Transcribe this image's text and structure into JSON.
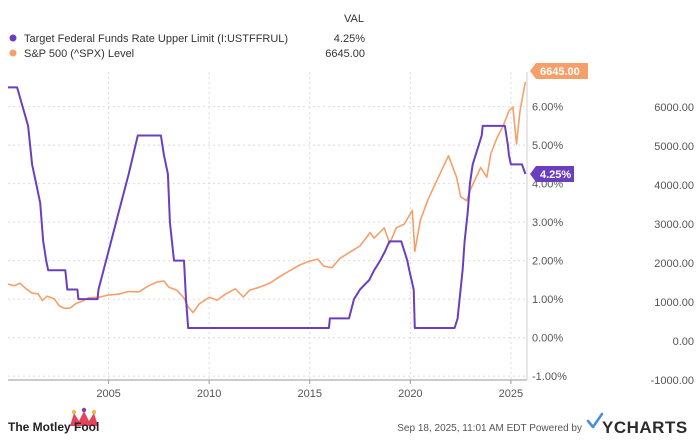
{
  "chart_data": {
    "type": "line",
    "legend_header": "VAL",
    "legend_position": "top-left",
    "grid": true,
    "series": [
      {
        "name": "Target Federal Funds Rate Upper Limit (I:USTFFRUL)",
        "legend_value": "4.25%",
        "end_label": "4.25%",
        "color": "#6a3fbf",
        "axis": "left",
        "points": [
          [
            2000.0,
            6.5
          ],
          [
            2000.45,
            6.5
          ],
          [
            2001.0,
            5.5
          ],
          [
            2001.2,
            4.5
          ],
          [
            2001.4,
            4.0
          ],
          [
            2001.6,
            3.5
          ],
          [
            2001.75,
            2.5
          ],
          [
            2001.9,
            2.0
          ],
          [
            2002.0,
            1.75
          ],
          [
            2002.85,
            1.75
          ],
          [
            2002.95,
            1.25
          ],
          [
            2003.45,
            1.25
          ],
          [
            2003.5,
            1.0
          ],
          [
            2004.45,
            1.0
          ],
          [
            2004.5,
            1.25
          ],
          [
            2005.0,
            2.25
          ],
          [
            2005.5,
            3.25
          ],
          [
            2006.0,
            4.25
          ],
          [
            2006.45,
            5.25
          ],
          [
            2007.6,
            5.25
          ],
          [
            2007.75,
            4.75
          ],
          [
            2007.95,
            4.25
          ],
          [
            2008.05,
            3.0
          ],
          [
            2008.25,
            2.0
          ],
          [
            2008.75,
            2.0
          ],
          [
            2008.85,
            1.0
          ],
          [
            2008.96,
            0.25
          ],
          [
            2015.95,
            0.25
          ],
          [
            2016.0,
            0.5
          ],
          [
            2016.95,
            0.5
          ],
          [
            2017.2,
            1.0
          ],
          [
            2017.5,
            1.25
          ],
          [
            2017.96,
            1.5
          ],
          [
            2018.2,
            1.75
          ],
          [
            2018.5,
            2.0
          ],
          [
            2018.75,
            2.25
          ],
          [
            2018.96,
            2.5
          ],
          [
            2019.55,
            2.5
          ],
          [
            2019.7,
            2.25
          ],
          [
            2019.85,
            2.0
          ],
          [
            2019.95,
            1.75
          ],
          [
            2020.17,
            1.25
          ],
          [
            2020.22,
            0.25
          ],
          [
            2022.2,
            0.25
          ],
          [
            2022.35,
            0.5
          ],
          [
            2022.45,
            1.0
          ],
          [
            2022.6,
            1.75
          ],
          [
            2022.7,
            2.5
          ],
          [
            2022.85,
            3.25
          ],
          [
            2022.96,
            4.0
          ],
          [
            2023.1,
            4.5
          ],
          [
            2023.25,
            4.75
          ],
          [
            2023.4,
            5.0
          ],
          [
            2023.55,
            5.25
          ],
          [
            2023.6,
            5.5
          ],
          [
            2024.7,
            5.5
          ],
          [
            2024.85,
            5.0
          ],
          [
            2024.9,
            4.75
          ],
          [
            2025.0,
            4.5
          ],
          [
            2025.55,
            4.5
          ],
          [
            2025.72,
            4.25
          ]
        ]
      },
      {
        "name": "S&P 500 (^SPX) Level",
        "legend_value": "6645.00",
        "end_label": "6645.00",
        "color": "#f5a06a",
        "axis": "right",
        "points": [
          [
            2000.0,
            1460
          ],
          [
            2000.3,
            1420
          ],
          [
            2000.6,
            1480
          ],
          [
            2000.9,
            1340
          ],
          [
            2001.2,
            1230
          ],
          [
            2001.5,
            1210
          ],
          [
            2001.7,
            1040
          ],
          [
            2001.95,
            1150
          ],
          [
            2002.3,
            1080
          ],
          [
            2002.55,
            900
          ],
          [
            2002.8,
            840
          ],
          [
            2003.1,
            850
          ],
          [
            2003.4,
            970
          ],
          [
            2003.7,
            1020
          ],
          [
            2004.0,
            1110
          ],
          [
            2004.5,
            1120
          ],
          [
            2005.0,
            1180
          ],
          [
            2005.5,
            1200
          ],
          [
            2006.0,
            1270
          ],
          [
            2006.5,
            1260
          ],
          [
            2007.0,
            1420
          ],
          [
            2007.4,
            1510
          ],
          [
            2007.75,
            1540
          ],
          [
            2008.0,
            1380
          ],
          [
            2008.4,
            1300
          ],
          [
            2008.75,
            1100
          ],
          [
            2008.95,
            880
          ],
          [
            2009.2,
            730
          ],
          [
            2009.5,
            950
          ],
          [
            2010.0,
            1120
          ],
          [
            2010.4,
            1050
          ],
          [
            2010.8,
            1200
          ],
          [
            2011.3,
            1340
          ],
          [
            2011.7,
            1130
          ],
          [
            2012.0,
            1300
          ],
          [
            2012.5,
            1380
          ],
          [
            2013.0,
            1480
          ],
          [
            2013.5,
            1650
          ],
          [
            2014.0,
            1800
          ],
          [
            2014.5,
            1950
          ],
          [
            2015.0,
            2050
          ],
          [
            2015.4,
            2100
          ],
          [
            2015.7,
            1920
          ],
          [
            2016.1,
            1880
          ],
          [
            2016.5,
            2120
          ],
          [
            2017.0,
            2280
          ],
          [
            2017.5,
            2440
          ],
          [
            2018.0,
            2780
          ],
          [
            2018.2,
            2640
          ],
          [
            2018.7,
            2900
          ],
          [
            2018.98,
            2500
          ],
          [
            2019.3,
            2900
          ],
          [
            2019.7,
            3000
          ],
          [
            2020.1,
            3350
          ],
          [
            2020.22,
            2300
          ],
          [
            2020.5,
            3100
          ],
          [
            2020.9,
            3650
          ],
          [
            2021.3,
            4100
          ],
          [
            2021.9,
            4750
          ],
          [
            2022.3,
            4200
          ],
          [
            2022.5,
            3700
          ],
          [
            2022.8,
            3600
          ],
          [
            2023.0,
            3900
          ],
          [
            2023.5,
            4450
          ],
          [
            2023.8,
            4200
          ],
          [
            2024.0,
            4800
          ],
          [
            2024.3,
            5200
          ],
          [
            2024.6,
            5500
          ],
          [
            2024.9,
            5900
          ],
          [
            2025.1,
            6000
          ],
          [
            2025.28,
            5050
          ],
          [
            2025.45,
            5900
          ],
          [
            2025.72,
            6645
          ]
        ]
      }
    ],
    "x_ticks": [
      "2005",
      "2010",
      "2015",
      "2020",
      "2025"
    ],
    "x_tick_values": [
      2005,
      2010,
      2015,
      2020,
      2025
    ],
    "xlim": [
      2000,
      2025.8
    ],
    "y_left": {
      "ticks": [
        "-1.00%",
        "0.00%",
        "1.00%",
        "2.00%",
        "3.00%",
        "4.00%",
        "5.00%",
        "6.00%"
      ],
      "tick_values": [
        -1,
        0,
        1,
        2,
        3,
        4,
        5,
        6
      ],
      "range": [
        -1.1,
        6.9
      ]
    },
    "y_right": {
      "ticks": [
        "-1000.00",
        "0.00",
        "1000.00",
        "2000.00",
        "3000.00",
        "4000.00",
        "5000.00",
        "6000.00"
      ],
      "tick_values": [
        -1000,
        0,
        1000,
        2000,
        3000,
        4000,
        5000,
        6000
      ],
      "range": [
        -1000,
        6900
      ]
    }
  },
  "footer": {
    "brand": "The Motley Fool",
    "timestamp": "Sep 18, 2025, 11:01 AM EDT  Powered by",
    "provider": "YCHARTS"
  }
}
